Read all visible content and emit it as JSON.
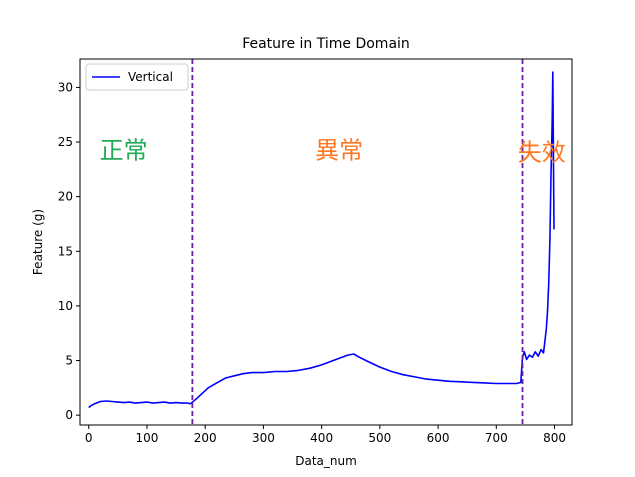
{
  "chart_data": {
    "type": "line",
    "title": "Feature in Time Domain",
    "xlabel": "Data_num",
    "ylabel": "Feature (g)",
    "xlim": [
      -15,
      830
    ],
    "ylim": [
      -0.9,
      32.6
    ],
    "xticks": [
      0,
      100,
      200,
      300,
      400,
      500,
      600,
      700,
      800
    ],
    "yticks": [
      0,
      5,
      10,
      15,
      20,
      25,
      30
    ],
    "grid": false,
    "legend_placement": "top-left",
    "series": [
      {
        "name": "Vertical",
        "color": "#0000ff",
        "points": [
          [
            0,
            0.7
          ],
          [
            5,
            0.9
          ],
          [
            10,
            1.05
          ],
          [
            15,
            1.15
          ],
          [
            20,
            1.25
          ],
          [
            30,
            1.3
          ],
          [
            40,
            1.25
          ],
          [
            50,
            1.2
          ],
          [
            60,
            1.15
          ],
          [
            70,
            1.2
          ],
          [
            80,
            1.1
          ],
          [
            90,
            1.15
          ],
          [
            100,
            1.2
          ],
          [
            110,
            1.1
          ],
          [
            120,
            1.15
          ],
          [
            130,
            1.2
          ],
          [
            140,
            1.1
          ],
          [
            150,
            1.15
          ],
          [
            160,
            1.1
          ],
          [
            170,
            1.1
          ],
          [
            175,
            1.05
          ],
          [
            185,
            1.5
          ],
          [
            195,
            2.0
          ],
          [
            205,
            2.5
          ],
          [
            215,
            2.8
          ],
          [
            225,
            3.1
          ],
          [
            235,
            3.4
          ],
          [
            250,
            3.6
          ],
          [
            265,
            3.8
          ],
          [
            280,
            3.9
          ],
          [
            300,
            3.9
          ],
          [
            320,
            4.0
          ],
          [
            340,
            4.0
          ],
          [
            360,
            4.1
          ],
          [
            380,
            4.3
          ],
          [
            400,
            4.6
          ],
          [
            420,
            5.0
          ],
          [
            435,
            5.3
          ],
          [
            445,
            5.5
          ],
          [
            455,
            5.6
          ],
          [
            465,
            5.3
          ],
          [
            480,
            4.9
          ],
          [
            500,
            4.4
          ],
          [
            520,
            4.0
          ],
          [
            540,
            3.7
          ],
          [
            560,
            3.5
          ],
          [
            580,
            3.3
          ],
          [
            600,
            3.2
          ],
          [
            620,
            3.1
          ],
          [
            640,
            3.05
          ],
          [
            660,
            3.0
          ],
          [
            680,
            2.95
          ],
          [
            700,
            2.9
          ],
          [
            720,
            2.9
          ],
          [
            735,
            2.9
          ],
          [
            742,
            3.0
          ],
          [
            745,
            5.3
          ],
          [
            748,
            5.8
          ],
          [
            752,
            5.1
          ],
          [
            757,
            5.5
          ],
          [
            762,
            5.3
          ],
          [
            767,
            5.8
          ],
          [
            772,
            5.4
          ],
          [
            777,
            6.0
          ],
          [
            781,
            5.7
          ],
          [
            784,
            7.0
          ],
          [
            786,
            8.0
          ],
          [
            788,
            9.5
          ],
          [
            790,
            12.0
          ],
          [
            792,
            16.0
          ],
          [
            794,
            22.0
          ],
          [
            796,
            27.0
          ],
          [
            797,
            31.4
          ],
          [
            799,
            17.0
          ]
        ]
      }
    ],
    "vlines": [
      {
        "x": 178,
        "color": "#6a1fa6",
        "style": "dashed"
      },
      {
        "x": 745,
        "color": "#6a1fa6",
        "style": "dashed"
      }
    ],
    "annotations": [
      {
        "text": "正常",
        "x": 60,
        "y": 23.5,
        "color": "#22aa55"
      },
      {
        "text": "異常",
        "x": 430,
        "y": 23.5,
        "color": "#ff7722"
      },
      {
        "text": "失效",
        "x": 778,
        "y": 23.3,
        "color": "#ff7722"
      }
    ]
  }
}
